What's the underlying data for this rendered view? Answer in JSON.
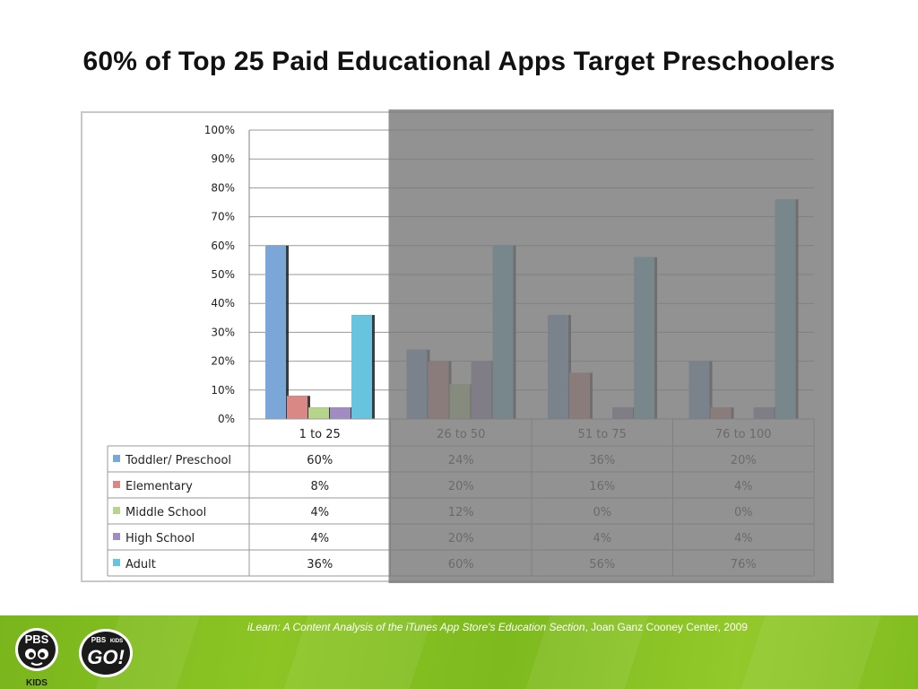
{
  "slide": {
    "title": "60% of Top 25 Paid Educational Apps Target Preschoolers"
  },
  "chart_data": {
    "type": "bar",
    "categories": [
      "1 to 25",
      "26 to 50",
      "51 to 75",
      "76 to 100"
    ],
    "series": [
      {
        "name": "Toddler/ Preschool",
        "values": [
          60,
          24,
          36,
          20
        ],
        "labels": [
          "60%",
          "24%",
          "36%",
          "20%"
        ],
        "color": "#7aa6d8"
      },
      {
        "name": "Elementary",
        "values": [
          8,
          20,
          16,
          4
        ],
        "labels": [
          "8%",
          "20%",
          "16%",
          "4%"
        ],
        "color": "#d98886"
      },
      {
        "name": "Middle School",
        "values": [
          4,
          12,
          0,
          0
        ],
        "labels": [
          "4%",
          "12%",
          "0%",
          "0%"
        ],
        "color": "#b6d58a"
      },
      {
        "name": "High School",
        "values": [
          4,
          20,
          4,
          4
        ],
        "labels": [
          "4%",
          "20%",
          "4%",
          "4%"
        ],
        "color": "#a08cc0"
      },
      {
        "name": "Adult",
        "values": [
          36,
          60,
          56,
          76
        ],
        "labels": [
          "36%",
          "60%",
          "56%",
          "76%"
        ],
        "color": "#68c4de"
      }
    ],
    "yticks": [
      "0%",
      "10%",
      "20%",
      "30%",
      "40%",
      "50%",
      "60%",
      "70%",
      "80%",
      "90%",
      "100%"
    ],
    "ylim": [
      0,
      100
    ],
    "grid": true,
    "legend": "data table below chart",
    "highlighted_category": "1 to 25",
    "dimmed_categories": [
      "26 to 50",
      "51 to 75",
      "76 to 100"
    ],
    "title": "",
    "xlabel": "",
    "ylabel": ""
  },
  "footer": {
    "citation_title": "iLearn: A Content Analysis of the iTunes App Store's Education Section",
    "citation_rest": ", Joan Ganz Cooney Center, 2009",
    "logo_pbs_kids": "PBS KIDS",
    "logo_pbs_kids_go": "PBS KIDS GO!",
    "colors": {
      "footer_green": "#86c022"
    }
  }
}
